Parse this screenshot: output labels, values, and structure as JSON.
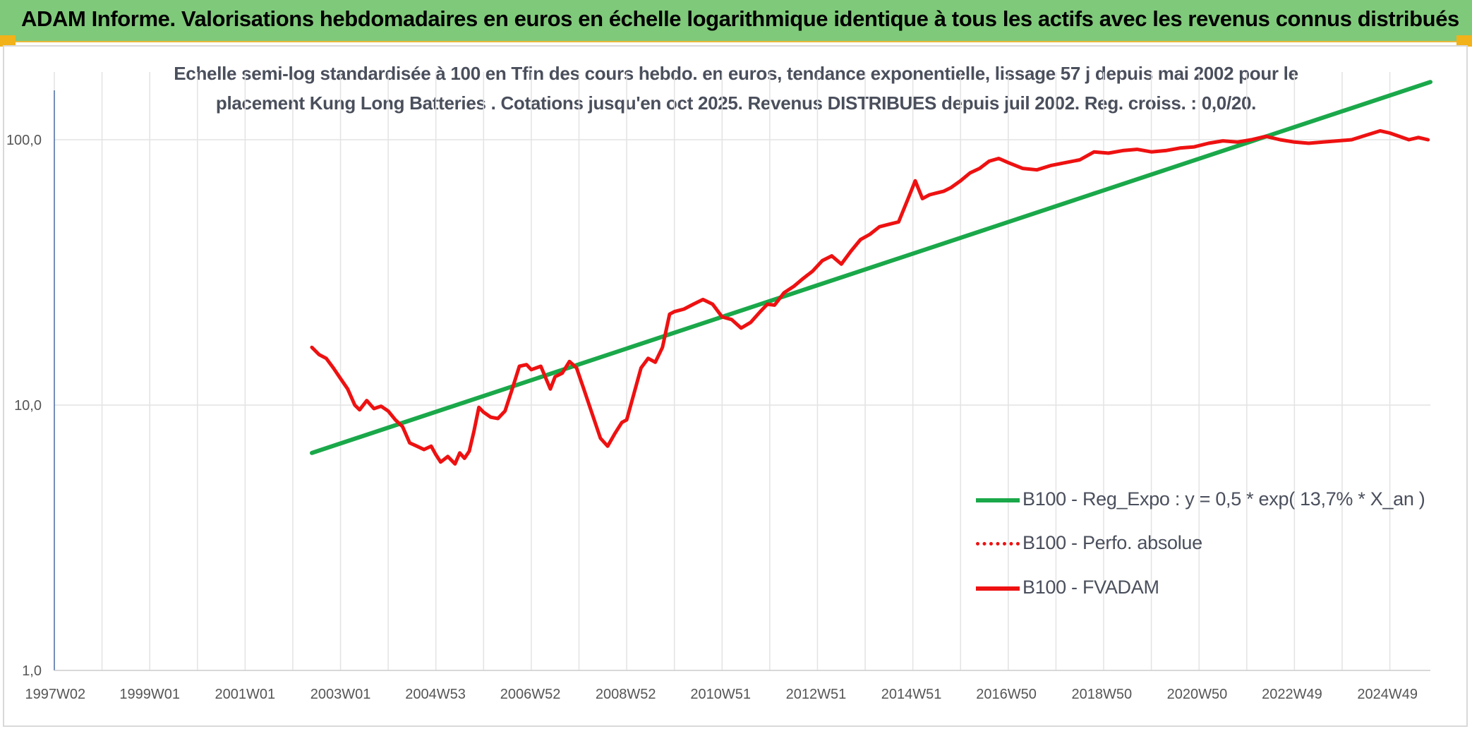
{
  "banner": {
    "title": "ADAM Informe. Valorisations hebdomadaires en euros en échelle logarithmique identique à tous les actifs avec les revenus connus distribués"
  },
  "colors": {
    "banner_bg": "#7fc97a",
    "trend": "#1aa84a",
    "fvadam": "#ee1111",
    "perfo": "#ee1111",
    "grid": "#e3e3e3",
    "axis": "#4a6fa5"
  },
  "chart_data": {
    "type": "line",
    "title_line1": "Echelle semi-log standardisée à 100 en Tfin des cours hebdo. en euros, tendance exponentielle, lissage 57 j depuis mai 2002 pour le",
    "title_line2": "placement Kung Long Batteries . Cotations jusqu'en oct 2025. Revenus DISTRIBUES depuis juil 2002. Reg. croiss. : 0,0/20.",
    "y_scale": "log",
    "ylim": [
      1,
      180
    ],
    "xlim": [
      1997.0,
      2025.85
    ],
    "grid": true,
    "legend_position": "right",
    "y_ticks": [
      {
        "value": 1,
        "label": "1,0"
      },
      {
        "value": 10,
        "label": "10,0"
      },
      {
        "value": 100,
        "label": "100,0"
      }
    ],
    "x_ticks": [
      {
        "value": 1997.02,
        "label": "1997W02"
      },
      {
        "value": 1999.0,
        "label": "1999W01"
      },
      {
        "value": 2001.0,
        "label": "2001W01"
      },
      {
        "value": 2003.0,
        "label": "2003W01"
      },
      {
        "value": 2004.99,
        "label": "2004W53"
      },
      {
        "value": 2006.98,
        "label": "2006W52"
      },
      {
        "value": 2008.98,
        "label": "2008W52"
      },
      {
        "value": 2010.97,
        "label": "2010W51"
      },
      {
        "value": 2012.97,
        "label": "2012W51"
      },
      {
        "value": 2014.97,
        "label": "2014W51"
      },
      {
        "value": 2016.96,
        "label": "2016W50"
      },
      {
        "value": 2018.96,
        "label": "2018W50"
      },
      {
        "value": 2020.96,
        "label": "2020W50"
      },
      {
        "value": 2022.95,
        "label": "2022W49"
      },
      {
        "value": 2024.95,
        "label": "2024W49"
      }
    ],
    "series": [
      {
        "name": "B100 - Reg_Expo : y = 0,5 * exp( 13,7% *  X_an )",
        "style": "solid-green",
        "x": [
          2002.4,
          2025.85
        ],
        "y": [
          6.6,
          165
        ]
      },
      {
        "name": "B100 - Perfo. absolue",
        "style": "dotted-red",
        "x": [],
        "y": []
      },
      {
        "name": "B100 - FVADAM",
        "style": "solid-red",
        "x": [
          2002.4,
          2002.55,
          2002.7,
          2002.85,
          2003.0,
          2003.15,
          2003.3,
          2003.4,
          2003.55,
          2003.7,
          2003.85,
          2004.0,
          2004.15,
          2004.3,
          2004.45,
          2004.6,
          2004.75,
          2004.9,
          2005.0,
          2005.1,
          2005.25,
          2005.4,
          2005.5,
          2005.6,
          2005.7,
          2005.8,
          2005.9,
          2006.0,
          2006.15,
          2006.3,
          2006.45,
          2006.6,
          2006.75,
          2006.9,
          2007.0,
          2007.2,
          2007.4,
          2007.5,
          2007.65,
          2007.8,
          2007.95,
          2008.1,
          2008.3,
          2008.45,
          2008.6,
          2008.75,
          2008.9,
          2009.0,
          2009.15,
          2009.3,
          2009.45,
          2009.6,
          2009.75,
          2009.9,
          2010.0,
          2010.2,
          2010.4,
          2010.6,
          2010.8,
          2011.0,
          2011.2,
          2011.4,
          2011.6,
          2011.8,
          2011.95,
          2012.1,
          2012.3,
          2012.5,
          2012.7,
          2012.9,
          2013.1,
          2013.3,
          2013.5,
          2013.7,
          2013.9,
          2014.1,
          2014.3,
          2014.5,
          2014.7,
          2014.9,
          2015.05,
          2015.2,
          2015.35,
          2015.5,
          2015.65,
          2015.8,
          2016.0,
          2016.2,
          2016.4,
          2016.6,
          2016.8,
          2017.0,
          2017.3,
          2017.6,
          2017.9,
          2018.2,
          2018.5,
          2018.8,
          2019.1,
          2019.4,
          2019.7,
          2020.0,
          2020.3,
          2020.6,
          2020.9,
          2021.2,
          2021.5,
          2021.8,
          2022.1,
          2022.4,
          2022.7,
          2023.0,
          2023.3,
          2023.6,
          2023.9,
          2024.2,
          2024.5,
          2024.8,
          2025.0,
          2025.2,
          2025.4,
          2025.6,
          2025.8
        ],
        "y": [
          16.5,
          15.5,
          15.0,
          13.8,
          12.6,
          11.5,
          10.0,
          9.6,
          10.4,
          9.7,
          9.9,
          9.5,
          8.8,
          8.3,
          7.2,
          7.0,
          6.8,
          7.0,
          6.5,
          6.1,
          6.4,
          6.0,
          6.6,
          6.3,
          6.7,
          8.0,
          9.8,
          9.4,
          9.0,
          8.9,
          9.5,
          11.5,
          14.0,
          14.2,
          13.6,
          14.0,
          11.5,
          12.8,
          13.2,
          14.6,
          13.8,
          11.5,
          9.0,
          7.5,
          7.0,
          7.8,
          8.6,
          8.8,
          11.0,
          13.8,
          15.0,
          14.5,
          16.5,
          22.0,
          22.5,
          23.0,
          24.0,
          25.0,
          24.0,
          21.5,
          21.0,
          19.5,
          20.5,
          22.5,
          24.0,
          23.8,
          26.5,
          28.0,
          30.0,
          32.0,
          35.0,
          36.5,
          34.0,
          38.0,
          42.0,
          44.0,
          47.0,
          48.0,
          49.0,
          60.0,
          70.0,
          60.0,
          62.0,
          63.0,
          64.0,
          66.0,
          70.0,
          75.0,
          78.0,
          83.0,
          85.0,
          82.0,
          78.0,
          77.0,
          80.0,
          82.0,
          84.0,
          90.0,
          89.0,
          91.0,
          92.0,
          90.0,
          91.0,
          93.0,
          94.0,
          97.0,
          99.0,
          98.0,
          100.0,
          103.0,
          100.0,
          98.0,
          97.0,
          98.0,
          99.0,
          100.0,
          104.0,
          108.0,
          106.0,
          103.0,
          100.0,
          102.0,
          100.0
        ]
      }
    ]
  }
}
